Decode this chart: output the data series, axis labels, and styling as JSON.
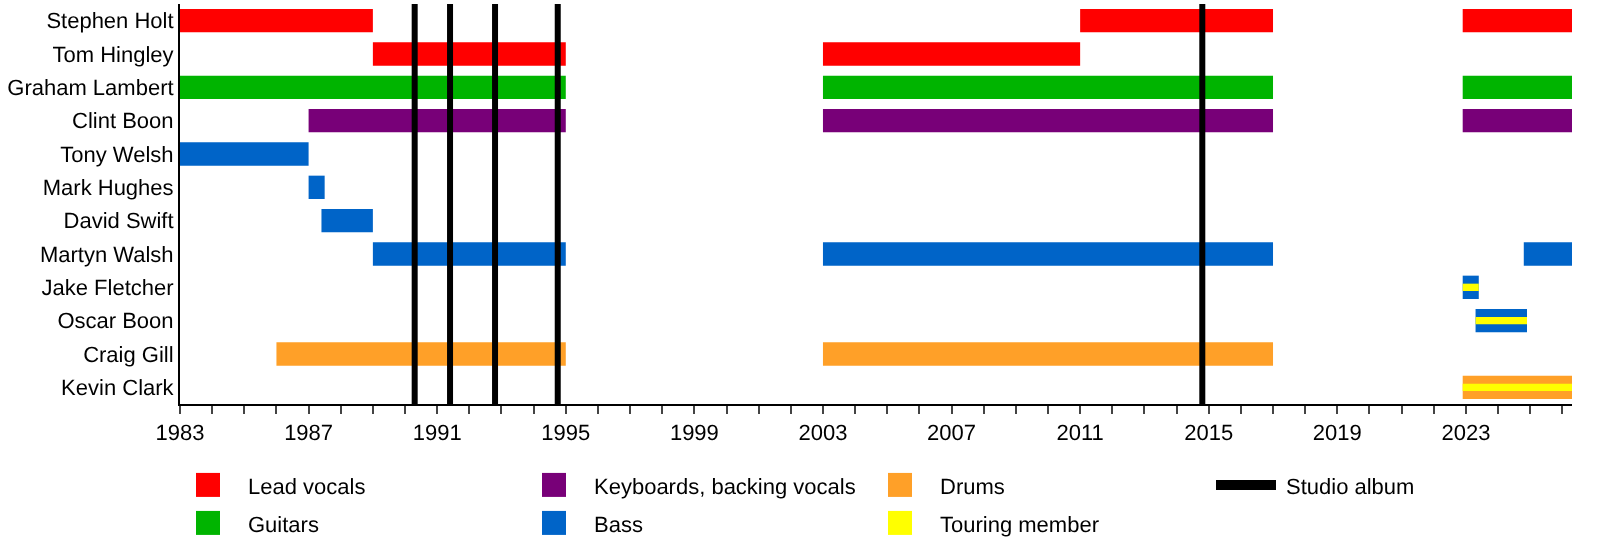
{
  "chart_data": {
    "type": "bar",
    "orientation": "horizontal",
    "legend": "bottom",
    "categories": [
      "Stephen Holt",
      "Tom Hingley",
      "Graham Lambert",
      "Clint Boon",
      "Tony Welsh",
      "Mark Hughes",
      "David Swift",
      "Martyn Walsh",
      "Jake Fletcher",
      "Oscar Boon",
      "Craig Gill",
      "Kevin Clark"
    ],
    "xlim": [
      1983,
      2026.3
    ],
    "xticks": [
      1983,
      {
        "value": 1984,
        "label": null
      },
      {
        "value": 1985,
        "label": null
      },
      {
        "value": 1986,
        "label": null
      },
      1987,
      {
        "value": 1988,
        "label": null
      },
      {
        "value": 1989,
        "label": null
      },
      {
        "value": 1990,
        "label": null
      },
      1991,
      {
        "value": 1992,
        "label": null
      },
      {
        "value": 1993,
        "label": null
      },
      {
        "value": 1994,
        "label": null
      },
      1995,
      {
        "value": 1996,
        "label": null
      },
      {
        "value": 1997,
        "label": null
      },
      {
        "value": 1998,
        "label": null
      },
      1999,
      {
        "value": 2000,
        "label": null
      },
      {
        "value": 2001,
        "label": null
      },
      {
        "value": 2002,
        "label": null
      },
      2003,
      {
        "value": 2004,
        "label": null
      },
      {
        "value": 2005,
        "label": null
      },
      {
        "value": 2006,
        "label": null
      },
      2007,
      {
        "value": 2008,
        "label": null
      },
      {
        "value": 2009,
        "label": null
      },
      {
        "value": 2010,
        "label": null
      },
      2011,
      {
        "value": 2012,
        "label": null
      },
      {
        "value": 2013,
        "label": null
      },
      {
        "value": 2014,
        "label": null
      },
      2015,
      {
        "value": 2016,
        "label": null
      },
      {
        "value": 2017,
        "label": null
      },
      {
        "value": 2018,
        "label": null
      },
      2019,
      {
        "value": 2020,
        "label": null
      },
      {
        "value": 2021,
        "label": null
      },
      {
        "value": 2022,
        "label": null
      },
      2023,
      {
        "value": 2024,
        "label": null
      },
      {
        "value": 2025,
        "label": null
      },
      {
        "value": 2026,
        "label": null
      }
    ],
    "series": [
      {
        "name": "Lead vocals",
        "color": "#ff0000",
        "base": [
          1983,
          1989,
          null,
          null,
          null,
          null,
          null,
          null,
          null,
          null,
          null,
          null
        ],
        "values": [
          6,
          6,
          null,
          null,
          null,
          null,
          null,
          null,
          null,
          null,
          null,
          null
        ]
      },
      {
        "color": "#ff0000",
        "base": [
          2011,
          2003,
          null,
          null,
          null,
          null,
          null,
          null,
          null,
          null,
          null,
          null
        ],
        "values": [
          6,
          8,
          null,
          null,
          null,
          null,
          null,
          null,
          null,
          null,
          null,
          null
        ]
      },
      {
        "color": "#ff0000",
        "base": [
          2022.9,
          null,
          null,
          null,
          null,
          null,
          null,
          null,
          null,
          null,
          null,
          null
        ],
        "values": [
          3.4,
          null,
          null,
          null,
          null,
          null,
          null,
          null,
          null,
          null,
          null,
          null
        ]
      },
      {
        "name": "Guitars",
        "color": "#00b400",
        "base": [
          null,
          null,
          1983,
          null,
          null,
          null,
          null,
          null,
          null,
          null,
          null,
          null
        ],
        "values": [
          null,
          null,
          12,
          null,
          null,
          null,
          null,
          null,
          null,
          null,
          null,
          null
        ]
      },
      {
        "color": "#00b400",
        "base": [
          null,
          null,
          2003,
          null,
          null,
          null,
          null,
          null,
          null,
          null,
          null,
          null
        ],
        "values": [
          null,
          null,
          14,
          null,
          null,
          null,
          null,
          null,
          null,
          null,
          null,
          null
        ]
      },
      {
        "color": "#00b400",
        "base": [
          null,
          null,
          2022.9,
          null,
          null,
          null,
          null,
          null,
          null,
          null,
          null,
          null
        ],
        "values": [
          null,
          null,
          3.4,
          null,
          null,
          null,
          null,
          null,
          null,
          null,
          null,
          null
        ]
      },
      {
        "name": "Keyboards, backing vocals",
        "color": "#780078",
        "base": [
          null,
          null,
          null,
          1987,
          null,
          null,
          null,
          null,
          null,
          null,
          null,
          null
        ],
        "values": [
          null,
          null,
          null,
          8,
          null,
          null,
          null,
          null,
          null,
          null,
          null,
          null
        ]
      },
      {
        "color": "#780078",
        "base": [
          null,
          null,
          null,
          2003,
          null,
          null,
          null,
          null,
          null,
          null,
          null,
          null
        ],
        "values": [
          null,
          null,
          null,
          14,
          null,
          null,
          null,
          null,
          null,
          null,
          null,
          null
        ]
      },
      {
        "color": "#780078",
        "base": [
          null,
          null,
          null,
          2022.9,
          null,
          null,
          null,
          null,
          null,
          null,
          null,
          null
        ],
        "values": [
          null,
          null,
          null,
          3.4,
          null,
          null,
          null,
          null,
          null,
          null,
          null,
          null
        ]
      },
      {
        "name": "Bass",
        "color": "#0064c8",
        "base": [
          null,
          null,
          null,
          null,
          1983,
          1987,
          1987.4,
          1989,
          2022.9,
          2023.3,
          null,
          null
        ],
        "values": [
          null,
          null,
          null,
          null,
          4,
          0.5,
          1.6,
          6,
          0.5,
          1.6,
          null,
          null
        ]
      },
      {
        "color": "#0064c8",
        "base": [
          null,
          null,
          null,
          null,
          null,
          null,
          null,
          2003,
          null,
          null,
          null,
          null
        ],
        "values": [
          null,
          null,
          null,
          null,
          null,
          null,
          null,
          14,
          null,
          null,
          null,
          null
        ]
      },
      {
        "color": "#0064c8",
        "base": [
          null,
          null,
          null,
          null,
          null,
          null,
          null,
          2024.8,
          null,
          null,
          null,
          null
        ],
        "values": [
          null,
          null,
          null,
          null,
          null,
          null,
          null,
          1.5,
          null,
          null,
          null,
          null
        ]
      },
      {
        "name": "Drums",
        "color": "#ffa028",
        "base": [
          null,
          null,
          null,
          null,
          null,
          null,
          null,
          null,
          null,
          null,
          1986,
          2022.9
        ],
        "values": [
          null,
          null,
          null,
          null,
          null,
          null,
          null,
          null,
          null,
          null,
          9,
          3.4
        ]
      },
      {
        "color": "#ffa028",
        "base": [
          null,
          null,
          null,
          null,
          null,
          null,
          null,
          null,
          null,
          null,
          2003,
          null
        ],
        "values": [
          null,
          null,
          null,
          null,
          null,
          null,
          null,
          null,
          null,
          null,
          14,
          null
        ]
      },
      {
        "name": "Touring member",
        "color": "#ffff00",
        "base": [
          null,
          null,
          null,
          null,
          null,
          null,
          null,
          null,
          2022.9,
          2023.3,
          null,
          2022.9
        ],
        "values": [
          null,
          null,
          null,
          null,
          null,
          null,
          null,
          null,
          0.5,
          1.6,
          null,
          3.4
        ]
      }
    ],
    "ref_lines": [
      {
        "axis": "x",
        "value": 1990.3,
        "label": "Studio album",
        "color": "#000000"
      },
      {
        "axis": "x",
        "value": 1991.4,
        "color": "#000000"
      },
      {
        "axis": "x",
        "value": 1992.8,
        "color": "#000000"
      },
      {
        "axis": "x",
        "value": 1994.75,
        "color": "#000000"
      },
      {
        "axis": "x",
        "value": 2014.8,
        "color": "#000000"
      }
    ]
  }
}
